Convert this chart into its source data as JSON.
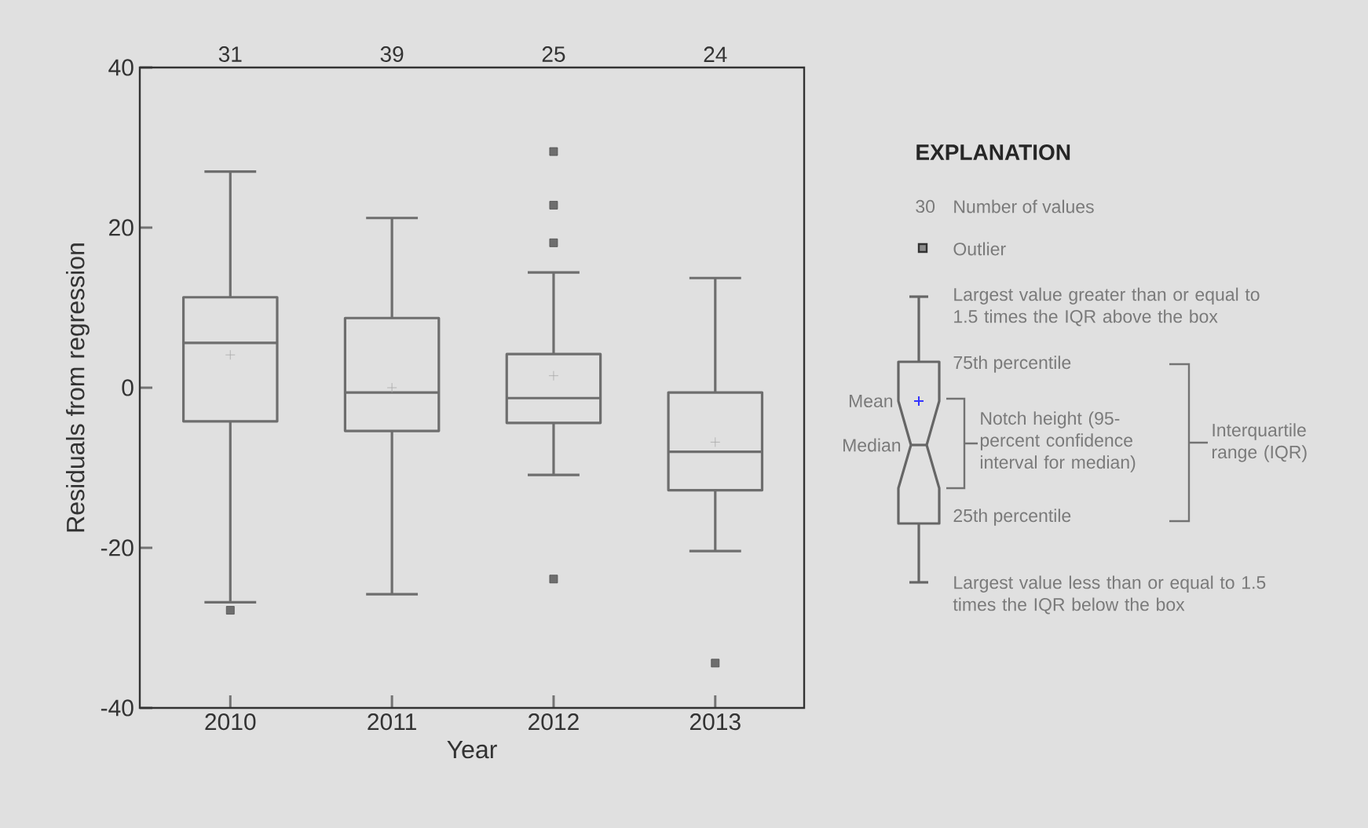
{
  "chart_data": {
    "type": "box",
    "xlabel": "Year",
    "ylabel": "Residuals from regression",
    "categories": [
      "2010",
      "2011",
      "2012",
      "2013"
    ],
    "marker": "square",
    "ylim": [
      -40,
      40
    ],
    "yticks": [
      -40,
      -20,
      0,
      20,
      40
    ],
    "series": [
      {
        "color": "#6e6e6e",
        "boxes": [
          {
            "low": -26.8,
            "q1": -4.2,
            "median": 5.6,
            "q3": 11.3,
            "high": 27.0,
            "mean": 4.1,
            "outliers": [
              -27.8
            ]
          },
          {
            "low": -25.8,
            "q1": -5.4,
            "median": -0.6,
            "q3": 8.7,
            "high": 21.2,
            "mean": 0.0
          },
          {
            "low": -10.9,
            "q1": -4.4,
            "median": -1.3,
            "q3": 4.2,
            "high": 14.4,
            "mean": 1.5,
            "outliers": [
              29.5,
              22.8,
              18.1,
              -23.9
            ]
          },
          {
            "low": -20.4,
            "q1": -12.8,
            "median": -8.0,
            "q3": -0.6,
            "high": 13.7,
            "mean": -6.8,
            "outliers": [
              -34.4
            ]
          }
        ]
      }
    ],
    "annotations": [
      "31",
      "39",
      "25",
      "24",
      "EXPLANATION",
      "30",
      "Number of values",
      "Outlier",
      "Largest value greater than or equal to 1.5 times the IQR above the box",
      "75th percentile",
      "Mean",
      "Median",
      "Notch height (95-percent confidence interval for median)",
      "25th percentile",
      "Interquartile range (IQR)",
      "Largest value less than or equal to 1.5 times the IQR below the box"
    ]
  }
}
